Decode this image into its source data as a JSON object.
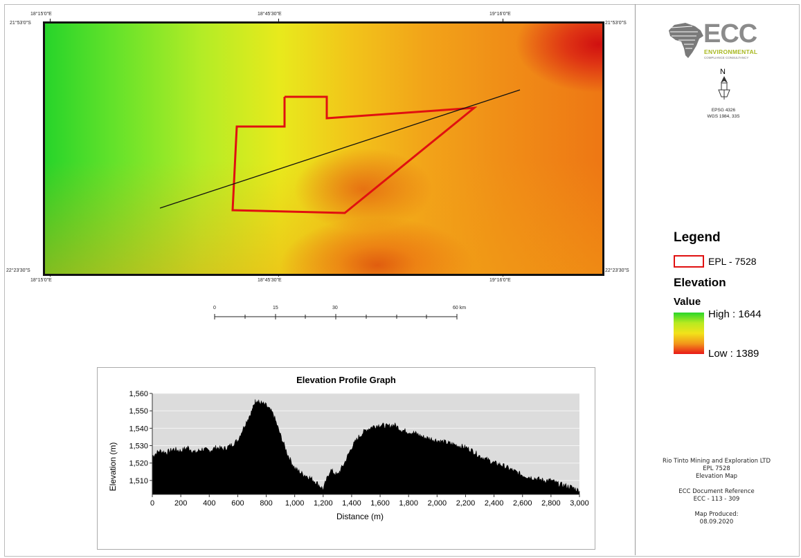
{
  "map": {
    "coord_top_left": "18°15'0\"E",
    "coord_top_mid": "18°45'30\"E",
    "coord_top_right": "19°16'0\"E",
    "coord_bottom_left": "18°15'0\"E",
    "coord_bottom_mid": "18°45'30\"E",
    "coord_bottom_right": "19°16'0\"E",
    "coord_left_top": "21°53'0\"S",
    "coord_left_bottom": "22°23'30\"S",
    "coord_right_top": "21°53'0\"S",
    "coord_right_bottom": "22°23'30\"S",
    "polygon_color": "#e01010",
    "profile_line_color": "#111111"
  },
  "scale_bar": {
    "labels": [
      "0",
      "15",
      "30",
      "60 km"
    ]
  },
  "logo": {
    "letters": "ECC",
    "line1": "ENVIRONMENTAL",
    "line2": "COMPLIANCE CONSULTANCY"
  },
  "north": {
    "letter": "N"
  },
  "projection": {
    "line1": "EPSG 4326",
    "line2": "WGS 1984, 33S"
  },
  "legend": {
    "title": "Legend",
    "epl_label": "EPL - 7528",
    "elevation_title": "Elevation",
    "value_title": "Value",
    "high_label": "High : 1644",
    "low_label": "Low : 1389",
    "colors": {
      "high": "#2ad62a",
      "mid": "#f2e21a",
      "low": "#e81818",
      "epl": "#e01010"
    }
  },
  "info": {
    "company": "Rio Tinto Mining and Exploration LTD",
    "epl": "EPL 7528",
    "map_name": "Elevation Map",
    "doc_ref_label": "ECC Document Reference",
    "doc_ref": "ECC - 113 - 309",
    "produced_label": "Map Produced:",
    "produced_date": "08.09.2020"
  },
  "chart_data": {
    "type": "area",
    "title": "Elevation Profile Graph",
    "xlabel": "Distance (m)",
    "ylabel": "Elevation (m)",
    "xlim": [
      0,
      3000
    ],
    "ylim": [
      1502,
      1560
    ],
    "x_ticks": [
      "0",
      "200",
      "400",
      "600",
      "800",
      "1,000",
      "1,200",
      "1,400",
      "1,600",
      "1,800",
      "2,000",
      "2,200",
      "2,400",
      "2,600",
      "2,800",
      "3,000"
    ],
    "y_ticks": [
      "1,510",
      "1,520",
      "1,530",
      "1,540",
      "1,550",
      "1,560"
    ],
    "grid": true,
    "x": [
      0,
      50,
      100,
      150,
      200,
      250,
      300,
      350,
      400,
      450,
      500,
      550,
      600,
      650,
      700,
      725,
      750,
      800,
      850,
      900,
      950,
      1000,
      1050,
      1100,
      1150,
      1200,
      1250,
      1300,
      1350,
      1400,
      1450,
      1500,
      1550,
      1600,
      1650,
      1700,
      1750,
      1800,
      1850,
      1900,
      1950,
      2000,
      2050,
      2100,
      2150,
      2200,
      2250,
      2300,
      2350,
      2400,
      2450,
      2500,
      2550,
      2600,
      2650,
      2700,
      2750,
      2800,
      2850,
      2900,
      2950,
      3000
    ],
    "values": [
      1524,
      1527,
      1526,
      1528,
      1527,
      1529,
      1526,
      1528,
      1527,
      1529,
      1528,
      1530,
      1533,
      1542,
      1550,
      1556,
      1555,
      1553,
      1548,
      1536,
      1525,
      1517,
      1514,
      1512,
      1509,
      1505,
      1516,
      1513,
      1520,
      1529,
      1535,
      1539,
      1541,
      1542,
      1541,
      1542,
      1539,
      1538,
      1537,
      1535,
      1534,
      1533,
      1532,
      1531,
      1530,
      1529,
      1527,
      1524,
      1522,
      1520,
      1519,
      1517,
      1515,
      1513,
      1512,
      1511,
      1510,
      1510,
      1508,
      1507,
      1506,
      1504
    ],
    "fill_color": "#000000",
    "plot_bg": "#dcdcdc"
  }
}
